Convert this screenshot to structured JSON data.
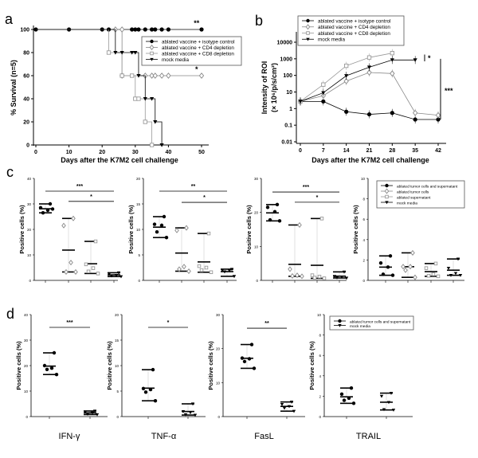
{
  "panel_labels": {
    "a": "a",
    "b": "b",
    "c": "c",
    "d": "d"
  },
  "chart_data": [
    {
      "id": "a",
      "type": "line",
      "step": true,
      "xlabel": "Days after the K7M2 cell challenge",
      "ylabel": "% Survival (n=5)",
      "xlim": [
        0,
        50
      ],
      "ylim": [
        0,
        100
      ],
      "xticks": [
        0,
        10,
        20,
        30,
        40,
        50
      ],
      "yticks": [
        0,
        20,
        40,
        60,
        80,
        100
      ],
      "legend": "top-right",
      "series": [
        {
          "name": "ablated vaccine + isotype control",
          "marker": "circle-filled",
          "color": "#000000",
          "points": [
            [
              0,
              100
            ],
            [
              10,
              100
            ],
            [
              20,
              100
            ],
            [
              22,
              100
            ],
            [
              29,
              100
            ],
            [
              30,
              100
            ],
            [
              31,
              100
            ],
            [
              33,
              100
            ],
            [
              35,
              100
            ],
            [
              36,
              100
            ],
            [
              38,
              100
            ],
            [
              40,
              100
            ],
            [
              50,
              100
            ]
          ],
          "annotation": "**"
        },
        {
          "name": "ablated vaccine + CD4 depletion",
          "marker": "diamond-open",
          "color": "#888888",
          "points": [
            [
              24,
              100
            ],
            [
              26,
              100
            ],
            [
              26,
              60
            ],
            [
              33,
              60
            ],
            [
              35,
              60
            ],
            [
              36,
              60
            ],
            [
              38,
              60
            ],
            [
              40,
              60
            ],
            [
              50,
              60
            ]
          ],
          "annotation": "*"
        },
        {
          "name": "ablated vaccine + CD8 depletion",
          "marker": "square-open",
          "color": "#999999",
          "points": [
            [
              0,
              100
            ],
            [
              22,
              80
            ],
            [
              26,
              60
            ],
            [
              29,
              60
            ],
            [
              30,
              40
            ],
            [
              31,
              40
            ],
            [
              33,
              20
            ],
            [
              35,
              0
            ]
          ]
        },
        {
          "name": "mock media",
          "marker": "triangle-filled",
          "color": "#000000",
          "points": [
            [
              0,
              100
            ],
            [
              22,
              100
            ],
            [
              24,
              80
            ],
            [
              26,
              80
            ],
            [
              29,
              80
            ],
            [
              30,
              80
            ],
            [
              31,
              60
            ],
            [
              33,
              40
            ],
            [
              35,
              40
            ],
            [
              36,
              20
            ],
            [
              38,
              0
            ]
          ]
        }
      ]
    },
    {
      "id": "b",
      "type": "line",
      "yscale": "log",
      "xlabel": "Days after the K7M2 cell challenge",
      "ylabel": [
        "Intensity of ROI",
        "(× 10⁶/p/s/cm²)"
      ],
      "xlim": [
        0,
        42
      ],
      "ylim": [
        0.01,
        10000
      ],
      "xticks": [
        0,
        7,
        14,
        21,
        28,
        35,
        42
      ],
      "yticks": [
        "0.01",
        "0.1",
        "1",
        "10",
        "100",
        "1000",
        "10000"
      ],
      "legend": "top",
      "series": [
        {
          "name": "ablated vaccine + isotype control",
          "marker": "circle-filled",
          "color": "#000000",
          "x": [
            0,
            7,
            14,
            21,
            28,
            35,
            42
          ],
          "y": [
            2.7,
            2.7,
            0.65,
            0.45,
            0.55,
            0.22,
            0.22
          ]
        },
        {
          "name": "ablated vaccine + CD4 depletion",
          "marker": "diamond-open",
          "color": "#888888",
          "x": [
            0,
            7,
            14,
            21,
            28,
            35,
            42
          ],
          "y": [
            2.7,
            6,
            45,
            150,
            130,
            0.55,
            0.4
          ]
        },
        {
          "name": "ablated vaccine + CD8 depletion",
          "marker": "square-open",
          "color": "#999999",
          "x": [
            0,
            7,
            14,
            21,
            28
          ],
          "y": [
            2.7,
            28,
            380,
            1200,
            2200
          ]
        },
        {
          "name": "mock media",
          "marker": "triangle-filled",
          "color": "#000000",
          "x": [
            0,
            7,
            14,
            21,
            28,
            35
          ],
          "y": [
            2.7,
            9,
            95,
            310,
            850,
            850
          ]
        }
      ],
      "significance": [
        {
          "label": "*",
          "from": 1800,
          "to": 700
        },
        {
          "label": "***",
          "from": 1000,
          "to": 0.22
        }
      ]
    },
    {
      "id": "c1",
      "type": "scatter",
      "ylabel": "Positive cells (%)",
      "ylim": [
        0,
        40
      ],
      "yticks": [
        0,
        10,
        20,
        30,
        40
      ],
      "groups": [
        [
          30,
          28.5,
          27.5,
          26.5,
          28
        ],
        [
          24.3,
          21.5,
          7,
          3.3,
          3.3
        ],
        [
          15.3,
          6.3,
          4.8,
          3.5,
          2.7
        ],
        [
          3,
          2.5,
          2,
          1.8,
          1.5
        ]
      ],
      "significance": [
        {
          "label": "***",
          "from": 0,
          "to": 3,
          "y": 35
        },
        {
          "label": "*",
          "from": 1,
          "to": 3,
          "y": 31
        }
      ]
    },
    {
      "id": "c2",
      "type": "scatter",
      "ylabel": "Positive cells (%)",
      "ylim": [
        0,
        20
      ],
      "yticks": [
        0,
        5,
        10,
        15,
        20
      ],
      "groups": [
        [
          12.5,
          11,
          10.8,
          9.5,
          8.4
        ],
        [
          10.3,
          9.8,
          2.7,
          2.2,
          1.8
        ],
        [
          9.2,
          2.8,
          2.5,
          2,
          1.6
        ],
        [
          2.2,
          2,
          1.9,
          1.7,
          0.8
        ]
      ],
      "significance": [
        {
          "label": "**",
          "from": 0,
          "to": 3,
          "y": 17.5
        },
        {
          "label": "*",
          "from": 1,
          "to": 3,
          "y": 15.3
        }
      ]
    },
    {
      "id": "c3",
      "type": "scatter",
      "ylabel": "Positive cells (%)",
      "ylim": [
        0,
        30
      ],
      "yticks": [
        0,
        10,
        20,
        30
      ],
      "groups": [
        [
          22.3,
          21.5,
          20.2,
          17.8,
          17.5
        ],
        [
          16.3,
          3.3,
          1.5,
          1.3,
          1.2
        ],
        [
          18.2,
          1.5,
          1.1,
          0.8,
          0.6
        ],
        [
          2.5,
          1.2,
          1,
          0.8,
          0.7
        ]
      ],
      "significance": [
        {
          "label": "***",
          "from": 0,
          "to": 3,
          "y": 26
        },
        {
          "label": "*",
          "from": 1,
          "to": 3,
          "y": 23
        }
      ]
    },
    {
      "id": "c4",
      "type": "scatter",
      "ylabel": "Positive cells (%)",
      "ylim": [
        0,
        10
      ],
      "yticks": [
        0,
        2,
        4,
        6,
        8,
        10
      ],
      "legend": "top-right",
      "series_names": [
        "ablated tumor cells and supernatant",
        "ablated tumor cells",
        "ablated supernatant",
        "mock media"
      ],
      "groups": [
        [
          2.4,
          1.7,
          1.3,
          0.6,
          0.5
        ],
        [
          2.7,
          1.35,
          1.35,
          1.0,
          0.3
        ],
        [
          1.65,
          1.2,
          0.6,
          0.45,
          0.4
        ],
        [
          2.1,
          1.2,
          0.7,
          0.5,
          0.5
        ]
      ],
      "significance": []
    },
    {
      "id": "d1",
      "type": "scatter",
      "ylabel": "Positive cells (%)",
      "xlabel": "IFN-γ",
      "ylim": [
        0,
        40
      ],
      "yticks": [
        0,
        10,
        20,
        30,
        40
      ],
      "groups": [
        [
          25,
          20,
          19,
          18.5,
          16.5
        ],
        [
          2.2,
          1.8,
          1.5,
          1,
          0.8
        ]
      ],
      "significance": [
        {
          "label": "***",
          "from": 0,
          "to": 1,
          "y": 35
        }
      ]
    },
    {
      "id": "d2",
      "type": "scatter",
      "ylabel": "Positive cells (%)",
      "xlabel": "TNF-α",
      "ylim": [
        0,
        20
      ],
      "yticks": [
        0,
        5,
        10,
        15,
        20
      ],
      "groups": [
        [
          9.2,
          5.5,
          5.3,
          4.8,
          3.1
        ],
        [
          2.5,
          1,
          0.8,
          0.4,
          0.3
        ]
      ],
      "significance": [
        {
          "label": "*",
          "from": 0,
          "to": 1,
          "y": 17.5
        }
      ]
    },
    {
      "id": "d3",
      "type": "scatter",
      "ylabel": "Positive cells (%)",
      "xlabel": "FasL",
      "ylim": [
        0,
        30
      ],
      "yticks": [
        0,
        10,
        20,
        30
      ],
      "groups": [
        [
          21.2,
          17.2,
          17,
          16.2,
          14.2
        ],
        [
          4.3,
          3.6,
          3,
          2.5,
          1.6
        ]
      ],
      "significance": [
        {
          "label": "**",
          "from": 0,
          "to": 1,
          "y": 26
        }
      ]
    },
    {
      "id": "d4",
      "type": "scatter",
      "ylabel": "Positive cells (%)",
      "xlabel": "TRAIL",
      "ylim": [
        0,
        10
      ],
      "yticks": [
        0,
        2,
        4,
        6,
        8,
        10
      ],
      "legend": "top-right",
      "series_names": [
        "ablated tumor cells and supernatant",
        "mock media"
      ],
      "groups": [
        [
          2.8,
          2.2,
          1.8,
          1.6,
          1.3
        ],
        [
          2.3,
          2,
          1.4,
          0.7,
          0.65
        ]
      ],
      "significance": []
    }
  ]
}
